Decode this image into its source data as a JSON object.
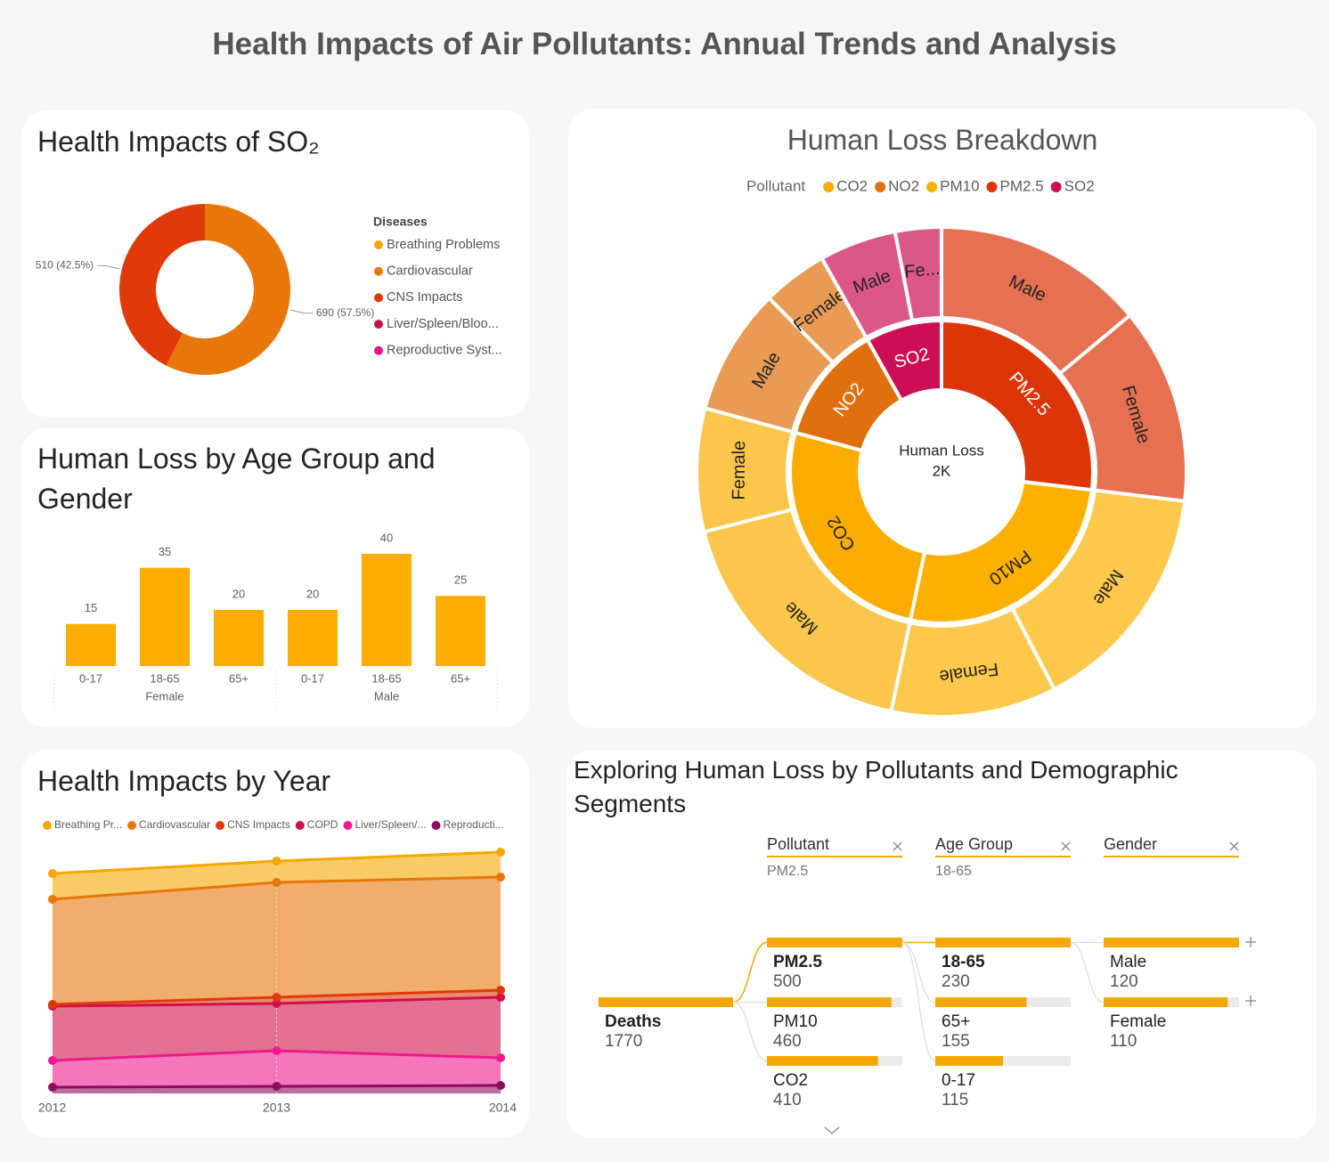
{
  "title": "Health Impacts of Air Pollutants: Annual Trends and Analysis",
  "chart_data": [
    {
      "type": "donut",
      "title": "Health Impacts of SO₂",
      "legend_title": "Diseases",
      "categories": [
        "Breathing Problems",
        "Cardiovascular",
        "CNS Impacts",
        "Liver/Spleen/Bloo...",
        "Reproductive Syst..."
      ],
      "values": [
        null,
        690,
        510,
        null,
        null
      ],
      "value_labels": [
        null,
        "690 (57.5%)",
        "510 (42.5%)",
        null,
        null
      ],
      "colors": [
        "#f5a800",
        "#e8770a",
        "#e03a0a",
        "#c8104e",
        "#e8158c"
      ]
    },
    {
      "type": "bar",
      "title": "Human Loss by Age Group and Gender",
      "color": "#fdad00",
      "groups": [
        {
          "name": "Female",
          "categories": [
            "0-17",
            "18-65",
            "65+"
          ],
          "values": [
            15,
            35,
            20
          ]
        },
        {
          "name": "Male",
          "categories": [
            "0-17",
            "18-65",
            "65+"
          ],
          "values": [
            20,
            40,
            25
          ]
        }
      ]
    },
    {
      "type": "area",
      "stacked": true,
      "title": "Health Impacts by Year",
      "x": [
        2012,
        2013,
        2014
      ],
      "series": [
        {
          "name": "Breathing Pr...",
          "color": "#f5a800",
          "values": [
            29,
            24,
            28
          ]
        },
        {
          "name": "Cardiovascular",
          "color": "#e8770a",
          "values": [
            118,
            129,
            127
          ]
        },
        {
          "name": "CNS Impacts",
          "color": "#e03a0a",
          "values": [
            2,
            7,
            8
          ]
        },
        {
          "name": "COPD",
          "color": "#d0104a",
          "values": [
            61,
            53,
            68
          ]
        },
        {
          "name": "Liver/Spleen/...",
          "color": "#ee1a8c",
          "values": [
            30,
            40,
            31
          ]
        },
        {
          "name": "Reproducti...",
          "color": "#8e0c5e",
          "values": [
            7,
            8,
            9
          ]
        }
      ]
    },
    {
      "type": "sunburst",
      "title": "Human Loss Breakdown",
      "legend_title": "Pollutant",
      "center_label": "Human Loss",
      "center_value": 2000,
      "center_value_label": "2K",
      "series": [
        {
          "name": "CO2",
          "color": "#fbac00",
          "value": 510,
          "children": [
            {
              "name": "Male",
              "value": 350
            },
            {
              "name": "Female",
              "value": 160
            }
          ]
        },
        {
          "name": "NO2",
          "color": "#e0700d",
          "value": 250,
          "children": [
            {
              "name": "Male",
              "value": 165
            },
            {
              "name": "Female",
              "value": 85
            }
          ]
        },
        {
          "name": "PM10",
          "color": "#fdb000",
          "value": 520,
          "children": [
            {
              "name": "Male",
              "value": 305
            },
            {
              "name": "Female",
              "value": 215
            }
          ]
        },
        {
          "name": "PM2.5",
          "color": "#dc3508",
          "value": 530,
          "children": [
            {
              "name": "Male",
              "value": 275
            },
            {
              "name": "Female",
              "value": 255
            }
          ]
        },
        {
          "name": "SO2",
          "color": "#cc0f55",
          "value": 160,
          "children": [
            {
              "name": "Male",
              "value": 100
            },
            {
              "name": "Fe...",
              "value": 60
            }
          ]
        }
      ]
    }
  ],
  "decomposition_tree": {
    "title": "Exploring Human Loss by Pollutants and Demographic Segments",
    "filters": [
      {
        "label": "Pollutant",
        "value": "PM2.5"
      },
      {
        "label": "Age Group",
        "value": "18-65"
      },
      {
        "label": "Gender"
      }
    ],
    "root": {
      "label": "Deaths",
      "value": 1770
    },
    "levels": [
      [
        {
          "label": "PM2.5",
          "value": 500
        },
        {
          "label": "PM10",
          "value": 460
        },
        {
          "label": "CO2",
          "value": 410
        }
      ],
      [
        {
          "label": "18-65",
          "value": 230
        },
        {
          "label": "65+",
          "value": 155
        },
        {
          "label": "0-17",
          "value": 115
        }
      ],
      [
        {
          "label": "Male",
          "value": 120
        },
        {
          "label": "Female",
          "value": 110
        }
      ]
    ]
  }
}
